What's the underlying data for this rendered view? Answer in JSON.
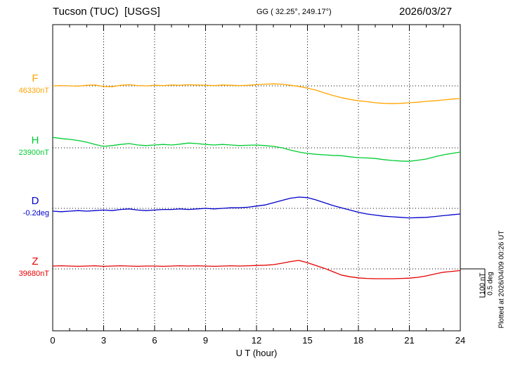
{
  "header": {
    "station": "Tucson (TUC)  [USGS]",
    "coords": "GG ( 32.25°, 249.17°)",
    "date": "2026/03/27"
  },
  "axis": {
    "xlabel": "U T (hour)",
    "xticks": [
      0,
      3,
      6,
      9,
      12,
      15,
      18,
      21,
      24
    ]
  },
  "scalebar": {
    "label_nt": "100 nT",
    "label_deg": "0.5 deg"
  },
  "footer": {
    "plotted_at": "Plotted at 2026/04/09 00:26 UT"
  },
  "chart_data": {
    "type": "line",
    "title": "Tucson (TUC) [USGS] magnetogram 2026/03/27",
    "xlabel": "U T (hour)",
    "x_min": 0,
    "x_max": 24,
    "grid": "dotted vertical every 3 h, dotted horizontal baseline per channel",
    "scale": {
      "bar_nT": 100,
      "bar_deg": 0.5
    },
    "x_hours": [
      0,
      0.5,
      1,
      1.5,
      2,
      2.5,
      3,
      3.5,
      4,
      4.5,
      5,
      5.5,
      6,
      6.5,
      7,
      7.5,
      8,
      8.5,
      9,
      9.5,
      10,
      10.5,
      11,
      11.5,
      12,
      12.5,
      13,
      13.5,
      14,
      14.5,
      15,
      15.5,
      16,
      16.5,
      17,
      17.5,
      18,
      18.5,
      19,
      19.5,
      20,
      20.5,
      21,
      21.5,
      22,
      22.5,
      23,
      23.5,
      24
    ],
    "series": [
      {
        "name": "F",
        "label": "F",
        "unit": "nT",
        "baseline_value": 46330,
        "baseline_label": "46330nT",
        "color": "#ffa500",
        "offsets": [
          0,
          1,
          0,
          -1,
          2,
          3,
          -2,
          -3,
          2,
          4,
          1,
          0,
          2,
          1,
          3,
          2,
          4,
          3,
          2,
          1,
          3,
          2,
          1,
          2,
          4,
          6,
          7,
          6,
          2,
          -2,
          -8,
          -15,
          -25,
          -34,
          -42,
          -48,
          -53,
          -56,
          -60,
          -62,
          -63,
          -62,
          -60,
          -58,
          -55,
          -53,
          -50,
          -47,
          -45
        ]
      },
      {
        "name": "H",
        "label": "H",
        "unit": "nT",
        "baseline_value": 23900,
        "baseline_label": "23900nT",
        "color": "#00cc33",
        "offsets": [
          37,
          33,
          30,
          26,
          20,
          12,
          5,
          8,
          12,
          15,
          10,
          8,
          10,
          12,
          10,
          13,
          17,
          15,
          12,
          10,
          12,
          10,
          8,
          9,
          10,
          8,
          5,
          0,
          -8,
          -15,
          -20,
          -23,
          -25,
          -27,
          -28,
          -32,
          -35,
          -36,
          -38,
          -42,
          -45,
          -47,
          -48,
          -44,
          -40,
          -32,
          -25,
          -20,
          -15
        ]
      },
      {
        "name": "D",
        "label": "D",
        "unit": "deg",
        "baseline_value": -0.2,
        "baseline_label": "-0.2deg",
        "color": "#0000cc",
        "offsets": [
          -0.05,
          -0.06,
          -0.05,
          -0.04,
          -0.05,
          -0.04,
          -0.03,
          -0.04,
          -0.02,
          -0.01,
          -0.03,
          -0.04,
          -0.03,
          -0.02,
          -0.02,
          -0.01,
          -0.02,
          -0.01,
          0,
          -0.01,
          0,
          0.01,
          0.01,
          0.02,
          0.04,
          0.06,
          0.1,
          0.14,
          0.18,
          0.2,
          0.19,
          0.15,
          0.1,
          0.05,
          0.01,
          -0.03,
          -0.07,
          -0.1,
          -0.12,
          -0.14,
          -0.15,
          -0.16,
          -0.17,
          -0.165,
          -0.16,
          -0.145,
          -0.13,
          -0.115,
          -0.1
        ]
      },
      {
        "name": "Z",
        "label": "Z",
        "unit": "nT",
        "baseline_value": 39680,
        "baseline_label": "39680nT",
        "color": "#e60000",
        "offsets": [
          10,
          11,
          10,
          9,
          10,
          11,
          9,
          10,
          11,
          10,
          9,
          10,
          10,
          9,
          10,
          11,
          10,
          11,
          10,
          9,
          10,
          11,
          10,
          11,
          12,
          13,
          15,
          20,
          26,
          30,
          22,
          12,
          2,
          -10,
          -22,
          -28,
          -32,
          -34,
          -35,
          -35,
          -35,
          -34,
          -33,
          -30,
          -25,
          -18,
          -12,
          -9,
          -6
        ]
      }
    ]
  }
}
